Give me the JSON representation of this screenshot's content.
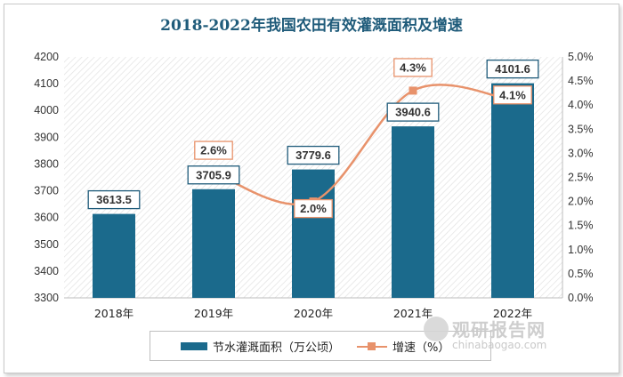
{
  "chart_data": {
    "type": "bar+line",
    "title": "2018-2022年我国农田有效灌溉面积及增速",
    "categories": [
      "2018年",
      "2019年",
      "2020年",
      "2021年",
      "2022年"
    ],
    "series": [
      {
        "name": "节水灌溉面积（万公顷）",
        "type": "bar",
        "axis": "left",
        "values": [
          3613.5,
          3705.9,
          3779.6,
          3940.6,
          4101.6
        ],
        "color": "#1b6a8c"
      },
      {
        "name": "增速（%）",
        "type": "line",
        "axis": "right",
        "values": [
          null,
          2.6,
          2.0,
          4.3,
          4.1
        ],
        "labels": [
          "",
          "2.6%",
          "2.0%",
          "4.3%",
          "4.1%"
        ],
        "color": "#e8926b"
      }
    ],
    "y_left": {
      "min": 3300,
      "max": 4200,
      "step": 100,
      "ticks": [
        "3300",
        "3400",
        "3500",
        "3600",
        "3700",
        "3800",
        "3900",
        "4000",
        "4100",
        "4200"
      ]
    },
    "y_right": {
      "min": 0,
      "max": 5.0,
      "step": 0.5,
      "ticks": [
        "0.0%",
        "0.5%",
        "1.0%",
        "1.5%",
        "2.0%",
        "2.5%",
        "3.0%",
        "3.5%",
        "4.0%",
        "4.5%",
        "5.0%"
      ]
    },
    "legend_position": "bottom",
    "grid": false
  },
  "watermark": {
    "name": "观研报告网",
    "url": "chinabaogao.com"
  }
}
